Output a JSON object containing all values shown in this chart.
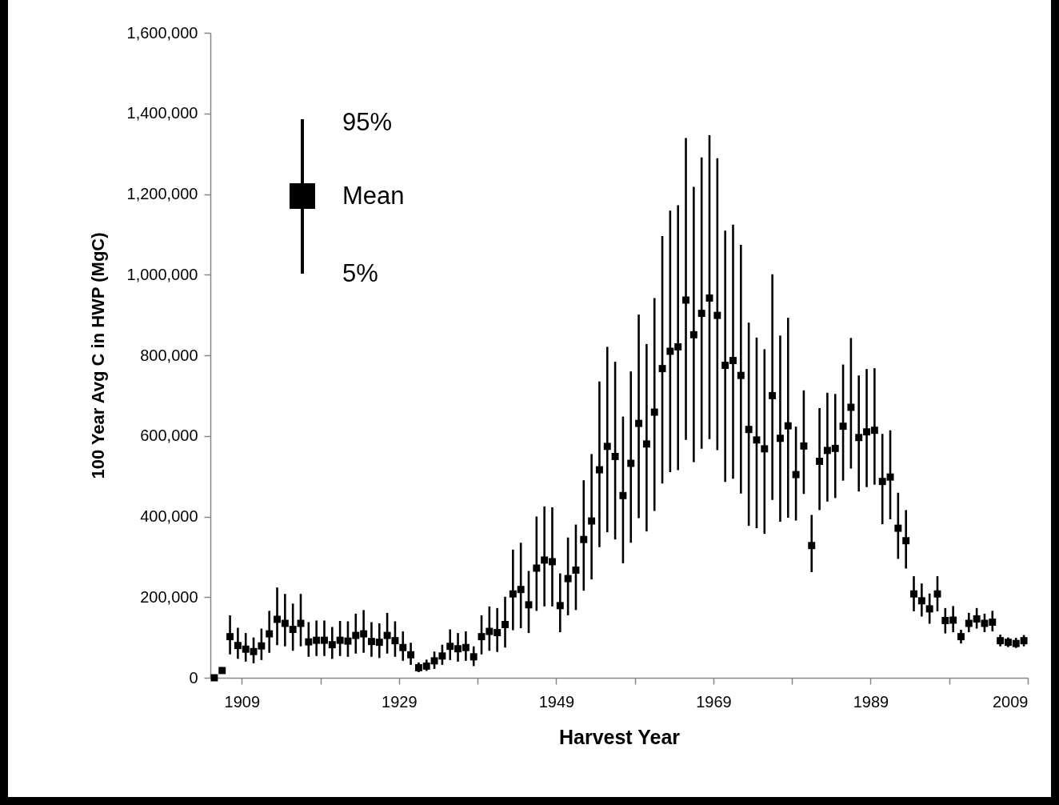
{
  "chart_data": {
    "type": "scatter",
    "xlabel": "Harvest Year",
    "ylabel": "100 Year Avg C in HWP (MgC)",
    "annotations": [
      "95%",
      "Mean",
      "5%"
    ],
    "marker": "square",
    "grid": false,
    "xlim": [
      1905,
      2009
    ],
    "xticks": [
      1909,
      {
        "value": 1919,
        "label": null
      },
      1929,
      {
        "value": 1939,
        "label": null
      },
      1949,
      {
        "value": 1959,
        "label": null
      },
      1969,
      {
        "value": 1979,
        "label": null
      },
      1989,
      {
        "value": 1999,
        "label": null
      },
      2009
    ],
    "ylim": [
      0,
      1600000
    ],
    "yticks": [
      0,
      {
        "value": 200000,
        "label": "200,000"
      },
      {
        "value": 400000,
        "label": "400,000"
      },
      {
        "value": 600000,
        "label": "600,000"
      },
      {
        "value": 800000,
        "label": "800,000"
      },
      {
        "value": 1000000,
        "label": "1,000,000"
      },
      {
        "value": 1200000,
        "label": "1,200,000"
      },
      {
        "value": 1400000,
        "label": "1,400,000"
      },
      {
        "value": 1600000,
        "label": "1,600,000"
      }
    ],
    "x": [
      1905.5,
      1906.5,
      1907.5,
      1908.5,
      1909.5,
      1910.5,
      1911.5,
      1912.5,
      1913.5,
      1914.5,
      1915.5,
      1916.5,
      1917.5,
      1918.5,
      1919.5,
      1920.5,
      1921.5,
      1922.5,
      1923.5,
      1924.5,
      1925.5,
      1926.5,
      1927.5,
      1928.5,
      1929.5,
      1930.5,
      1931.5,
      1932.5,
      1933.5,
      1934.5,
      1935.5,
      1936.5,
      1937.5,
      1938.5,
      1939.5,
      1940.5,
      1941.5,
      1942.5,
      1943.5,
      1944.5,
      1945.5,
      1946.5,
      1947.5,
      1948.5,
      1949.5,
      1950.5,
      1951.5,
      1952.5,
      1953.5,
      1954.5,
      1955.5,
      1956.5,
      1957.5,
      1958.5,
      1959.5,
      1960.5,
      1961.5,
      1962.5,
      1963.5,
      1964.5,
      1965.5,
      1966.5,
      1967.5,
      1968.5,
      1969.5,
      1970.5,
      1971.5,
      1972.5,
      1973.5,
      1974.5,
      1975.5,
      1976.5,
      1977.5,
      1978.5,
      1979.5,
      1980.5,
      1981.5,
      1982.5,
      1983.5,
      1984.5,
      1985.5,
      1986.5,
      1987.5,
      1988.5,
      1989.5,
      1990.5,
      1991.5,
      1992.5,
      1993.5,
      1994.5,
      1995.5,
      1996.5,
      1997.5,
      1998.5,
      1999.5,
      2000.5,
      2001.5,
      2002.5,
      2003.5,
      2004.5,
      2005.5,
      2006.5,
      2007.5,
      2008.5
    ],
    "series": [
      {
        "color": "#000000",
        "values": [
          0,
          18000,
          102000,
          80000,
          71000,
          65000,
          79000,
          109000,
          145000,
          135000,
          120000,
          135000,
          89000,
          93000,
          93000,
          82000,
          93000,
          91000,
          105000,
          109000,
          90000,
          88000,
          105000,
          92000,
          75000,
          57000,
          25000,
          29000,
          42000,
          54000,
          78000,
          72000,
          75000,
          52000,
          102000,
          115000,
          112000,
          132000,
          208000,
          219000,
          181000,
          272000,
          292000,
          288000,
          179000,
          246000,
          267000,
          343000,
          389000,
          516000,
          574000,
          549000,
          452000,
          532000,
          631000,
          580000,
          659000,
          767000,
          810000,
          821000,
          937000,
          851000,
          904000,
          942000,
          899000,
          775000,
          787000,
          750000,
          616000,
          590000,
          568000,
          700000,
          594000,
          625000,
          504000,
          575000,
          328000,
          537000,
          564000,
          569000,
          624000,
          671000,
          596000,
          610000,
          614000,
          487000,
          498000,
          371000,
          340000,
          208000,
          191000,
          171000,
          208000,
          142000,
          143000,
          102000,
          135000,
          146000,
          135000,
          138000,
          92000,
          88000,
          85000,
          92000
        ],
        "errors": [
          null,
          null,
          [
            58000,
            155000
          ],
          [
            47000,
            124000
          ],
          [
            40000,
            111000
          ],
          [
            36000,
            100000
          ],
          [
            44000,
            122000
          ],
          [
            62000,
            166000
          ],
          [
            81000,
            224000
          ],
          [
            78000,
            208000
          ],
          [
            67000,
            184000
          ],
          [
            78000,
            208000
          ],
          [
            52000,
            138000
          ],
          [
            54000,
            142000
          ],
          [
            54000,
            142000
          ],
          [
            47000,
            126000
          ],
          [
            54000,
            141000
          ],
          [
            52000,
            140000
          ],
          [
            60000,
            159000
          ],
          [
            62000,
            168000
          ],
          [
            52000,
            138000
          ],
          [
            49000,
            135000
          ],
          [
            60000,
            161000
          ],
          [
            52000,
            140000
          ],
          [
            42000,
            115000
          ],
          [
            32000,
            87000
          ],
          [
            14000,
            38000
          ],
          [
            17000,
            45000
          ],
          [
            22000,
            65000
          ],
          [
            32000,
            82000
          ],
          [
            44000,
            120000
          ],
          [
            40000,
            111000
          ],
          [
            42000,
            115000
          ],
          [
            29000,
            78000
          ],
          [
            58000,
            155000
          ],
          [
            67000,
            177000
          ],
          [
            64000,
            173000
          ],
          [
            75000,
            201000
          ],
          [
            118000,
            318000
          ],
          [
            123000,
            335000
          ],
          [
            111000,
            265000
          ],
          [
            166000,
            400000
          ],
          [
            177000,
            425000
          ],
          [
            177000,
            423000
          ],
          [
            113000,
            259000
          ],
          [
            155000,
            348000
          ],
          [
            168000,
            380000
          ],
          [
            216000,
            490000
          ],
          [
            244000,
            555000
          ],
          [
            324000,
            735000
          ],
          [
            361000,
            821000
          ],
          [
            343000,
            784000
          ],
          [
            284000,
            648000
          ],
          [
            335000,
            760000
          ],
          [
            396000,
            901000
          ],
          [
            363000,
            828000
          ],
          [
            414000,
            942000
          ],
          [
            482000,
            1096000
          ],
          [
            510000,
            1159000
          ],
          [
            515000,
            1172000
          ],
          [
            590000,
            1339000
          ],
          [
            535000,
            1218000
          ],
          [
            568000,
            1291000
          ],
          [
            592000,
            1346000
          ],
          [
            565000,
            1289000
          ],
          [
            486000,
            1109000
          ],
          [
            494000,
            1124000
          ],
          [
            457000,
            1074000
          ],
          [
            377000,
            881000
          ],
          [
            371000,
            844000
          ],
          [
            357000,
            815000
          ],
          [
            441000,
            1001000
          ],
          [
            387000,
            849000
          ],
          [
            397000,
            893000
          ],
          [
            390000,
            623000
          ],
          [
            456000,
            713000
          ],
          [
            262000,
            404000
          ],
          [
            416000,
            669000
          ],
          [
            437000,
            707000
          ],
          [
            446000,
            704000
          ],
          [
            489000,
            777000
          ],
          [
            519000,
            843000
          ],
          [
            462000,
            750000
          ],
          [
            473000,
            766000
          ],
          [
            479000,
            768000
          ],
          [
            381000,
            605000
          ],
          [
            393000,
            614000
          ],
          [
            295000,
            459000
          ],
          [
            271000,
            416000
          ],
          [
            165000,
            252000
          ],
          [
            152000,
            234000
          ],
          [
            134000,
            209000
          ],
          [
            165000,
            252000
          ],
          [
            110000,
            173000
          ],
          [
            113000,
            178000
          ],
          [
            85000,
            119000
          ],
          [
            113000,
            161000
          ],
          [
            122000,
            173000
          ],
          [
            113000,
            159000
          ],
          [
            115000,
            166000
          ],
          [
            78000,
            107000
          ],
          [
            76000,
            100000
          ],
          [
            74000,
            99000
          ],
          [
            78000,
            106000
          ]
        ]
      }
    ]
  }
}
